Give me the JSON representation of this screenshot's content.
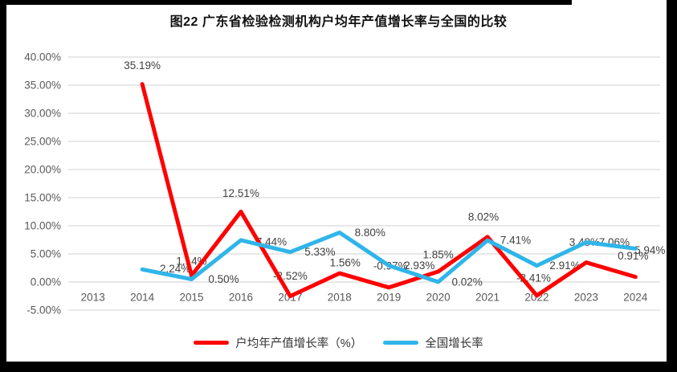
{
  "chart_data": {
    "type": "line",
    "title": "图22  广东省检验检测机构户均年产值增长率与全国的比较",
    "xlabel": "",
    "ylabel": "",
    "ylim": [
      -5,
      40
    ],
    "grid": true,
    "legend_position": "bottom",
    "grid_color": "#d9d9d9",
    "axis_text_color": "#595959",
    "label_text_color": "#404040",
    "categories": [
      "2013",
      "2014",
      "2015",
      "2016",
      "2017",
      "2018",
      "2019",
      "2020",
      "2021",
      "2022",
      "2023",
      "2024"
    ],
    "y_axis": {
      "min": -5,
      "max": 40,
      "step": 5,
      "ticks": [
        {
          "v": 40,
          "label": "40.00%"
        },
        {
          "v": 35,
          "label": "35.00%"
        },
        {
          "v": 30,
          "label": "30.00%"
        },
        {
          "v": 25,
          "label": "25.00%"
        },
        {
          "v": 20,
          "label": "20.00%"
        },
        {
          "v": 15,
          "label": "15.00%"
        },
        {
          "v": 10,
          "label": "10.00%"
        },
        {
          "v": 5,
          "label": "5.00%"
        },
        {
          "v": 0,
          "label": "0.00%"
        },
        {
          "v": -5,
          "label": "-5.00%"
        }
      ]
    },
    "series": [
      {
        "id": "per-org-growth",
        "name": "户均年产值增长率（%）",
        "color": "#fe0000",
        "values": [
          null,
          35.19,
          1.14,
          12.51,
          -2.52,
          1.56,
          -0.97,
          1.85,
          8.02,
          -2.41,
          3.48,
          0.91
        ],
        "labels": [
          null,
          "35.19%",
          "1.14%",
          "12.51%",
          "-2.52%",
          "1.56%",
          "-0.97%",
          "1.85%",
          "8.02%",
          "-2.41%",
          "3.48%",
          "0.91%"
        ],
        "label_offsets": [
          null,
          [
            0,
            -23
          ],
          [
            0,
            -18
          ],
          [
            0,
            -23
          ],
          [
            0,
            -25
          ],
          [
            7,
            -13
          ],
          [
            2,
            -27
          ],
          [
            0,
            -21
          ],
          [
            -5,
            -25
          ],
          [
            -4,
            -22
          ],
          [
            -2,
            -25
          ],
          [
            -3,
            -26
          ]
        ]
      },
      {
        "id": "national-growth",
        "name": "全国增长率",
        "color": "#2fb5e9",
        "values": [
          null,
          2.24,
          0.5,
          7.44,
          5.33,
          8.8,
          2.93,
          0.02,
          7.41,
          2.91,
          7.06,
          5.94
        ],
        "labels": [
          null,
          "2.24%",
          "0.50%",
          "7.44%",
          "5.33%",
          "8.80%",
          "2.93%",
          "0.02%",
          "7.41%",
          "2.91%",
          "7.06%",
          "5.94%"
        ],
        "label_offsets": [
          null,
          [
            41,
            -1
          ],
          [
            40,
            0
          ],
          [
            38,
            2
          ],
          [
            37,
            0
          ],
          [
            38,
            0
          ],
          [
            38,
            0
          ],
          [
            36,
            0
          ],
          [
            35,
            0
          ],
          [
            35,
            0
          ],
          [
            35,
            0
          ],
          [
            18,
            2
          ]
        ]
      }
    ]
  }
}
